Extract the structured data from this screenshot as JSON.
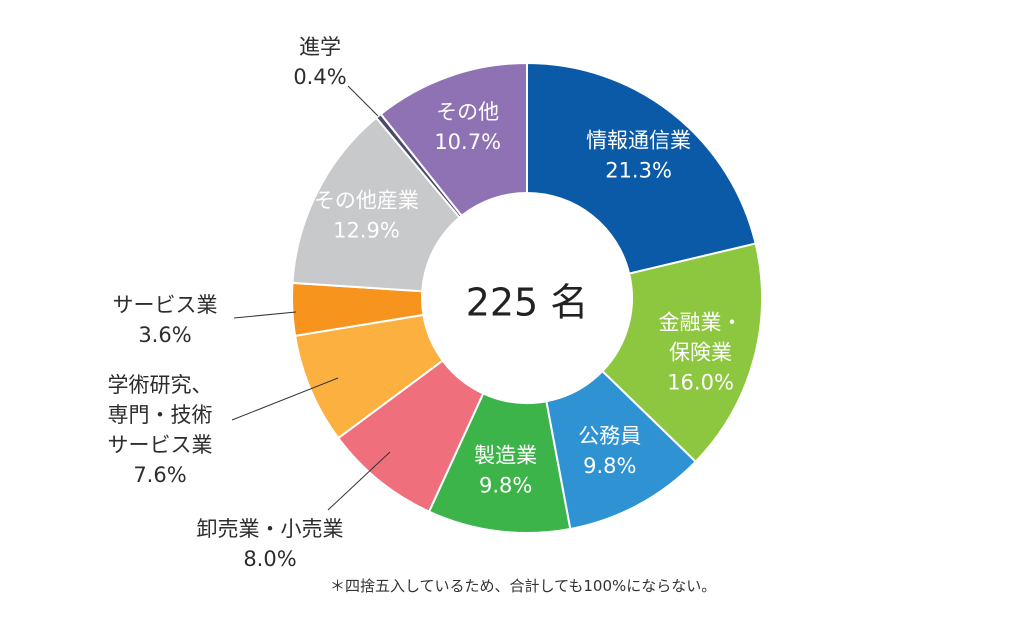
{
  "chart_data": {
    "type": "pie",
    "variant": "donut",
    "center_label": "225 名",
    "note": "＊四捨五入しているため、合計しても100%にならない。",
    "slices": [
      {
        "label_lines": [
          "情報通信業"
        ],
        "value_text": "21.3%",
        "value": 21.3,
        "color": "#0a5aa8"
      },
      {
        "label_lines": [
          "金融業・",
          "保険業"
        ],
        "value_text": "16.0%",
        "value": 16.0,
        "color": "#8dc63f"
      },
      {
        "label_lines": [
          "公務員"
        ],
        "value_text": "9.8%",
        "value": 9.8,
        "color": "#2f93d3"
      },
      {
        "label_lines": [
          "製造業"
        ],
        "value_text": "9.8%",
        "value": 9.8,
        "color": "#3db449"
      },
      {
        "label_lines": [
          "卸売業・小売業"
        ],
        "value_text": "8.0%",
        "value": 8.0,
        "color": "#ef6f7d"
      },
      {
        "label_lines": [
          "学術研究、",
          "専門・技術",
          "サービス業"
        ],
        "value_text": "7.6%",
        "value": 7.6,
        "color": "#fbb040"
      },
      {
        "label_lines": [
          "サービス業"
        ],
        "value_text": "3.6%",
        "value": 3.6,
        "color": "#f7941d"
      },
      {
        "label_lines": [
          "その他産業"
        ],
        "value_text": "12.9%",
        "value": 12.9,
        "color": "#c8c9ca"
      },
      {
        "label_lines": [
          "進学"
        ],
        "value_text": "0.4%",
        "value": 0.4,
        "color": "#4a4a6a"
      },
      {
        "label_lines": [
          "その他"
        ],
        "value_text": "10.7%",
        "value": 10.7,
        "color": "#8e72b3"
      }
    ]
  }
}
